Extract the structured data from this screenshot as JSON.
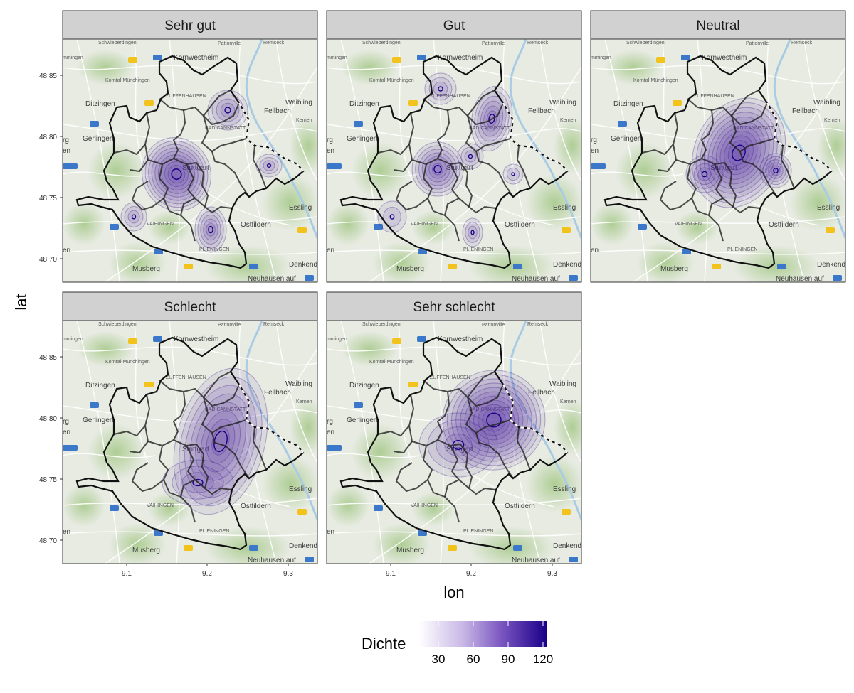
{
  "panels": [
    {
      "title": "Sehr gut"
    },
    {
      "title": "Gut"
    },
    {
      "title": "Neutral"
    },
    {
      "title": "Schlecht"
    },
    {
      "title": "Sehr schlecht"
    }
  ],
  "axes": {
    "xlabel": "lon",
    "ylabel": "lat",
    "x_ticks": [
      "9.1",
      "9.2",
      "9.3"
    ],
    "y_ticks": [
      "48.85",
      "48.80",
      "48.75",
      "48.70"
    ]
  },
  "legend": {
    "title": "Dichte",
    "ticks": [
      "30",
      "60",
      "90",
      "120"
    ],
    "color_low": "#ffffff",
    "color_high": "#1a0088"
  },
  "map_labels": {
    "schwieberdingen": "Schwieberdingen",
    "pattonville": "Pattonville",
    "remseck": "Remseck",
    "mmingen": "mmingen",
    "kornwestheim": "Kornwestheim",
    "korntal": "Korntal-Münchingen",
    "zuffenhausen": "ZUFFENHAUSEN",
    "ditzingen": "Ditzingen",
    "waiblingen": "Waibling",
    "fellbach": "Fellbach",
    "kernen": "Kernen",
    "gerlingen": "Gerlingen",
    "badcannstatt": "BAD CANNSTATT",
    "stuttgart": "Stuttgart",
    "esslingen": "Essling",
    "ostfildern": "Ostfildern",
    "vaihingen": "VAIHINGEN",
    "plieningen": "PLIENINGEN",
    "musberg": "Musberg",
    "denkendorf": "Denkendo",
    "neuhausen": "Neuhausen auf",
    "rg": "rg",
    "en": "en"
  },
  "colors": {
    "map_bg": "#e7ebe2",
    "forest": "#b3d19a",
    "water": "#a9cbe3",
    "strip": "#d1d1d1",
    "border": "#111111",
    "density": "#5b34a6"
  }
}
